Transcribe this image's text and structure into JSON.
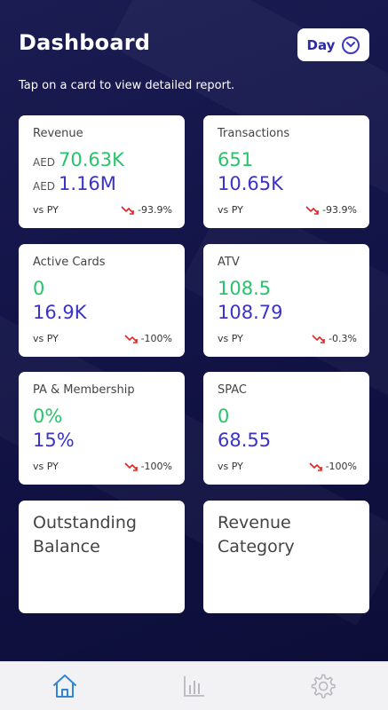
{
  "header": {
    "title": "Dashboard",
    "period": "Day",
    "subtitle": "Tap on a card to view detailed report."
  },
  "cards": [
    {
      "title": "Revenue",
      "currency": "AED",
      "current": "70.63K",
      "previous": "1.16M",
      "vs": "vs PY",
      "change": "-93.9%"
    },
    {
      "title": "Transactions",
      "current": "651",
      "previous": "10.65K",
      "vs": "vs PY",
      "change": "-93.9%"
    },
    {
      "title": "Active Cards",
      "current": "0",
      "previous": "16.9K",
      "vs": "vs PY",
      "change": "-100%"
    },
    {
      "title": "ATV",
      "current": "108.5",
      "previous": "108.79",
      "vs": "vs PY",
      "change": "-0.3%"
    },
    {
      "title": "PA & Membership",
      "current": "0%",
      "previous": "15%",
      "vs": "vs PY",
      "change": "-100%"
    },
    {
      "title": "SPAC",
      "current": "0",
      "previous": "68.55",
      "vs": "vs PY",
      "change": "-100%"
    },
    {
      "title": "Outstanding Balance"
    },
    {
      "title": "Revenue Category"
    }
  ],
  "tabbar": {
    "items": [
      {
        "icon": "home-icon",
        "active": true
      },
      {
        "icon": "bar-chart-icon",
        "active": false
      },
      {
        "icon": "gear-icon",
        "active": false
      }
    ]
  },
  "colors": {
    "background": "#12133f",
    "positive": "#27c46b",
    "secondary": "#3b33c9",
    "negative": "#e02424",
    "active_tab": "#2f86d6",
    "inactive_tab": "#b8b8be"
  }
}
